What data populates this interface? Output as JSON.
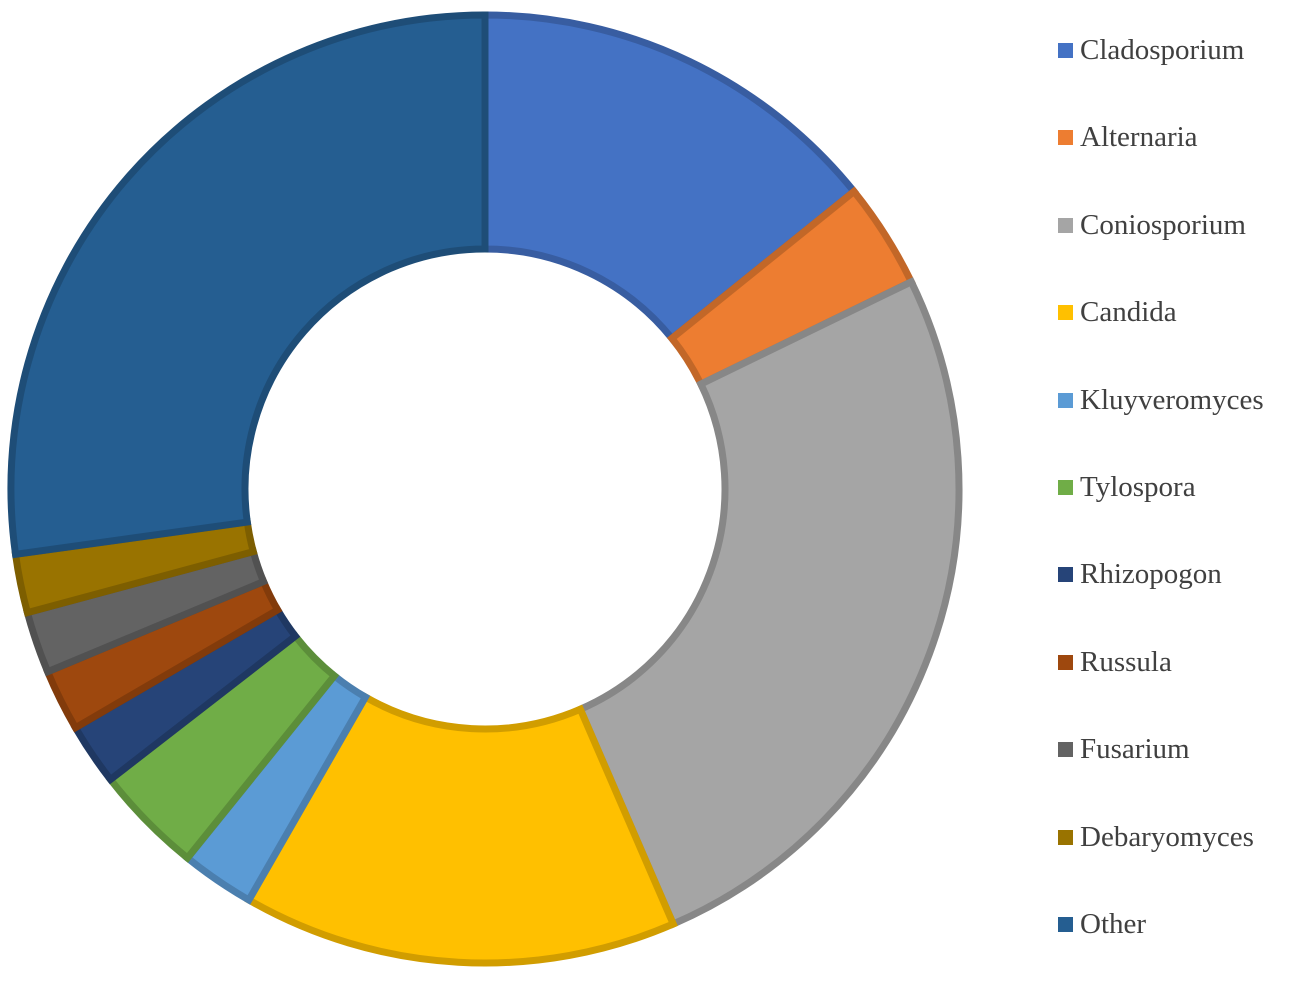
{
  "chart_data": {
    "type": "pie",
    "variant": "donut",
    "title": "",
    "legend_position": "right",
    "unit": "percent",
    "slices": [
      {
        "label": "Cladosporium",
        "value": 14.2,
        "color": "#4472C4"
      },
      {
        "label": "Alternaria",
        "value": 3.6,
        "color": "#ED7D31"
      },
      {
        "label": "Coniosporium",
        "value": 25.7,
        "color": "#A5A5A5"
      },
      {
        "label": "Candida",
        "value": 14.8,
        "color": "#FFC000"
      },
      {
        "label": "Kluyveromyces",
        "value": 2.5,
        "color": "#5B9BD5"
      },
      {
        "label": "Tylospora",
        "value": 3.7,
        "color": "#70AD47"
      },
      {
        "label": "Rhizopogon",
        "value": 2.1,
        "color": "#264478"
      },
      {
        "label": "Russula",
        "value": 2.1,
        "color": "#9E480E"
      },
      {
        "label": "Fusarium",
        "value": 2.1,
        "color": "#636363"
      },
      {
        "label": "Debaryomyces",
        "value": 2.0,
        "color": "#997300"
      },
      {
        "label": "Other",
        "value": 27.2,
        "color": "#255E91"
      }
    ]
  }
}
